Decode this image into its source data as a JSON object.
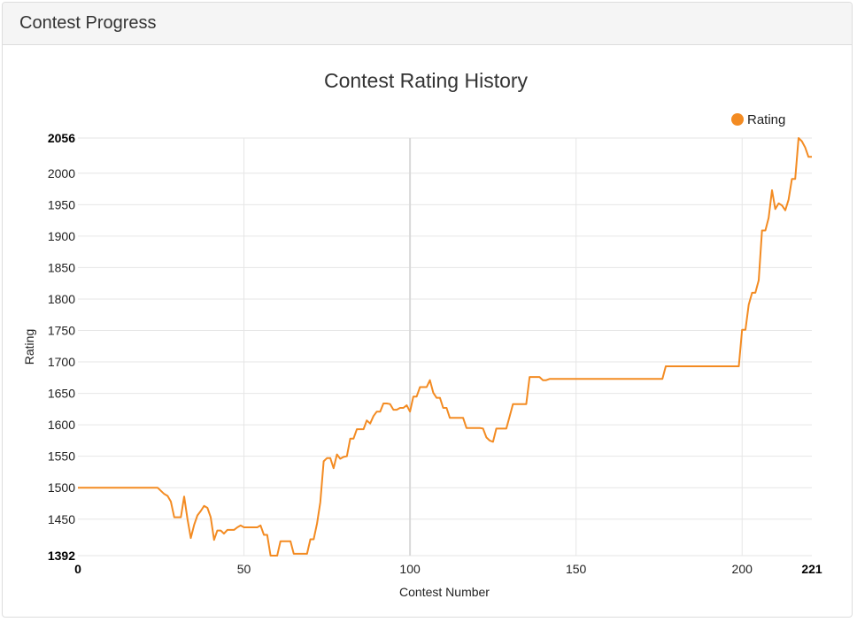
{
  "panel": {
    "heading": "Contest Progress"
  },
  "colors": {
    "line": "#f38b22",
    "grid": "#e6e6e6",
    "grid_major": "#d9d9d9"
  },
  "chart_data": {
    "type": "line",
    "title": "Contest Rating History",
    "xlabel": "Contest Number",
    "ylabel": "Rating",
    "xlim": [
      0,
      221
    ],
    "ylim": [
      1392,
      2056
    ],
    "x_ticks": [
      0,
      50,
      100,
      150,
      200,
      221
    ],
    "y_ticks": [
      1392,
      1450,
      1500,
      1550,
      1600,
      1650,
      1700,
      1750,
      1800,
      1850,
      1900,
      1950,
      2000,
      2056
    ],
    "grid": true,
    "legend_position": "top-right",
    "series": [
      {
        "name": "Rating",
        "color": "#f38b22",
        "x": [
          0,
          24,
          25,
          26,
          27,
          28,
          29,
          30,
          31,
          32,
          33,
          34,
          35,
          36,
          37,
          38,
          39,
          40,
          41,
          42,
          43,
          44,
          45,
          46,
          47,
          48,
          49,
          50,
          51,
          52,
          53,
          54,
          55,
          56,
          57,
          58,
          59,
          60,
          61,
          62,
          63,
          64,
          65,
          66,
          67,
          68,
          69,
          70,
          71,
          72,
          73,
          74,
          75,
          76,
          77,
          78,
          79,
          80,
          81,
          82,
          83,
          84,
          85,
          86,
          87,
          88,
          89,
          90,
          91,
          92,
          93,
          94,
          95,
          96,
          97,
          98,
          99,
          100,
          101,
          102,
          103,
          104,
          105,
          106,
          107,
          108,
          109,
          110,
          111,
          112,
          113,
          114,
          115,
          116,
          117,
          118,
          119,
          120,
          121,
          122,
          123,
          124,
          125,
          126,
          127,
          128,
          129,
          130,
          131,
          132,
          133,
          134,
          135,
          136,
          137,
          138,
          139,
          140,
          141,
          142,
          143,
          144,
          176,
          177,
          178,
          199,
          200,
          201,
          202,
          203,
          204,
          205,
          206,
          207,
          208,
          209,
          210,
          211,
          212,
          213,
          214,
          215,
          216,
          217,
          218,
          219,
          220,
          221
        ],
        "values": [
          1500,
          1500,
          1495,
          1490,
          1487,
          1478,
          1453,
          1453,
          1453,
          1486,
          1450,
          1420,
          1441,
          1456,
          1463,
          1471,
          1468,
          1453,
          1417,
          1432,
          1432,
          1427,
          1433,
          1433,
          1433,
          1437,
          1440,
          1437,
          1437,
          1437,
          1437,
          1437,
          1440,
          1425,
          1425,
          1392,
          1392,
          1392,
          1415,
          1415,
          1415,
          1415,
          1395,
          1395,
          1395,
          1395,
          1395,
          1418,
          1418,
          1443,
          1477,
          1542,
          1547,
          1547,
          1531,
          1553,
          1546,
          1549,
          1550,
          1578,
          1578,
          1593,
          1593,
          1593,
          1607,
          1602,
          1614,
          1621,
          1621,
          1634,
          1634,
          1633,
          1624,
          1624,
          1627,
          1627,
          1631,
          1621,
          1645,
          1645,
          1660,
          1660,
          1660,
          1671,
          1651,
          1643,
          1643,
          1627,
          1627,
          1611,
          1611,
          1611,
          1611,
          1611,
          1595,
          1595,
          1595,
          1595,
          1595,
          1594,
          1580,
          1575,
          1573,
          1594,
          1594,
          1594,
          1594,
          1613,
          1633,
          1633,
          1633,
          1633,
          1633,
          1676,
          1676,
          1676,
          1676,
          1671,
          1671,
          1673,
          1673,
          1673,
          1673,
          1693,
          1693,
          1693,
          1751,
          1751,
          1791,
          1810,
          1810,
          1830,
          1909,
          1909,
          1929,
          1973,
          1943,
          1952,
          1949,
          1941,
          1958,
          1991,
          1991,
          2056,
          2051,
          2041,
          2026,
          2026
        ]
      }
    ]
  }
}
